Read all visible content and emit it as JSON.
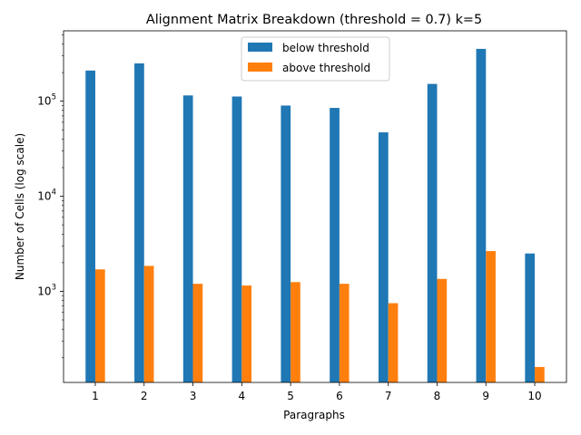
{
  "chart_data": {
    "type": "bar",
    "title": "Alignment Matrix Breakdown (threshold = 0.7) k=5",
    "xlabel": "Paragraphs",
    "ylabel": "Number of Cells (log scale)",
    "yscale": "log",
    "ylim": [
      110,
      550000
    ],
    "categories": [
      "1",
      "2",
      "3",
      "4",
      "5",
      "6",
      "7",
      "8",
      "9",
      "10"
    ],
    "series": [
      {
        "name": "below threshold",
        "color": "#1f77b4",
        "values": [
          210000,
          250000,
          115000,
          112000,
          90000,
          85000,
          47000,
          152000,
          355000,
          2500
        ]
      },
      {
        "name": "above threshold",
        "color": "#ff7f0e",
        "values": [
          1700,
          1850,
          1200,
          1150,
          1250,
          1200,
          750,
          1350,
          2650,
          160
        ]
      }
    ],
    "yticks": [
      {
        "value": 1000,
        "base": "10",
        "exp": "3"
      },
      {
        "value": 10000,
        "base": "10",
        "exp": "4"
      },
      {
        "value": 100000,
        "base": "10",
        "exp": "5"
      }
    ],
    "legend_position": "upper-center",
    "grid": false
  }
}
